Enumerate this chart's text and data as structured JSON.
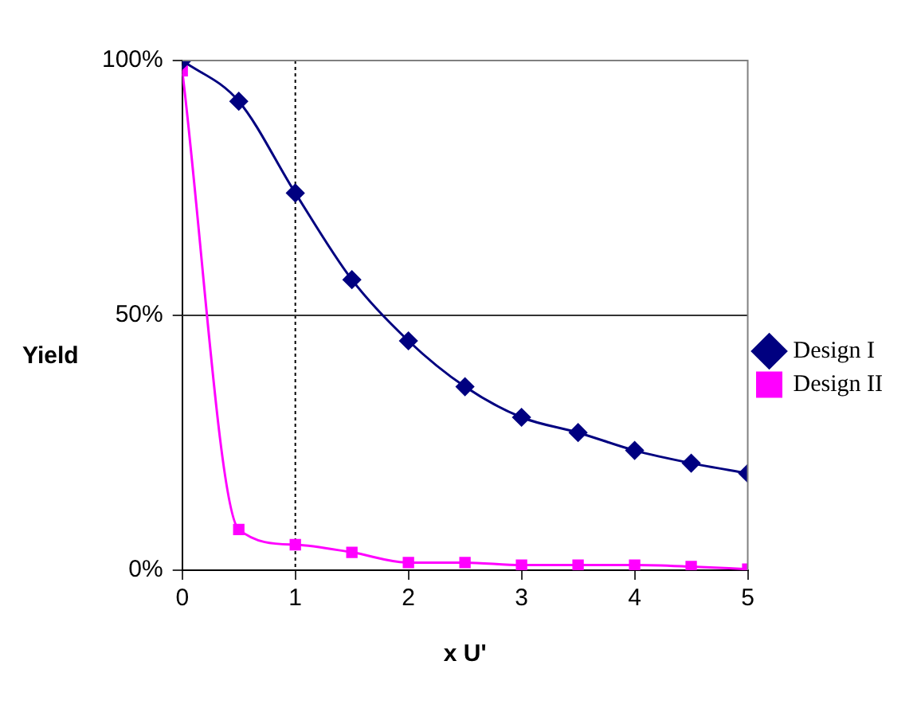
{
  "chart_data": {
    "type": "line",
    "xlabel": "x U'",
    "ylabel": "Yield",
    "x": [
      0,
      0.5,
      1,
      1.5,
      2,
      2.5,
      3,
      3.5,
      4,
      4.5,
      5
    ],
    "series": [
      {
        "name": "Design I",
        "color": "#000080",
        "marker": "diamond",
        "values": [
          100,
          92,
          74,
          57,
          45,
          36,
          30,
          27,
          23.5,
          21,
          19
        ]
      },
      {
        "name": "Design II",
        "color": "#ff00ff",
        "marker": "square",
        "values": [
          98,
          8,
          5,
          3.5,
          1.5,
          1.5,
          1,
          1,
          1,
          0.7,
          0.2
        ]
      }
    ],
    "xlim": [
      0,
      5
    ],
    "xticks": [
      0,
      1,
      2,
      3,
      4,
      5
    ],
    "ylim": [
      0,
      100
    ],
    "yticks": [
      {
        "value": 0,
        "label": "0%"
      },
      {
        "value": 50,
        "label": "50%"
      },
      {
        "value": 100,
        "label": "100%"
      }
    ],
    "ref_lines": [
      {
        "axis": "x",
        "value": 1,
        "line_style": "dotted",
        "color": "#000000"
      },
      {
        "axis": "y",
        "value": 50,
        "line_style": "solid",
        "color": "#333333"
      }
    ],
    "legend": "right"
  }
}
